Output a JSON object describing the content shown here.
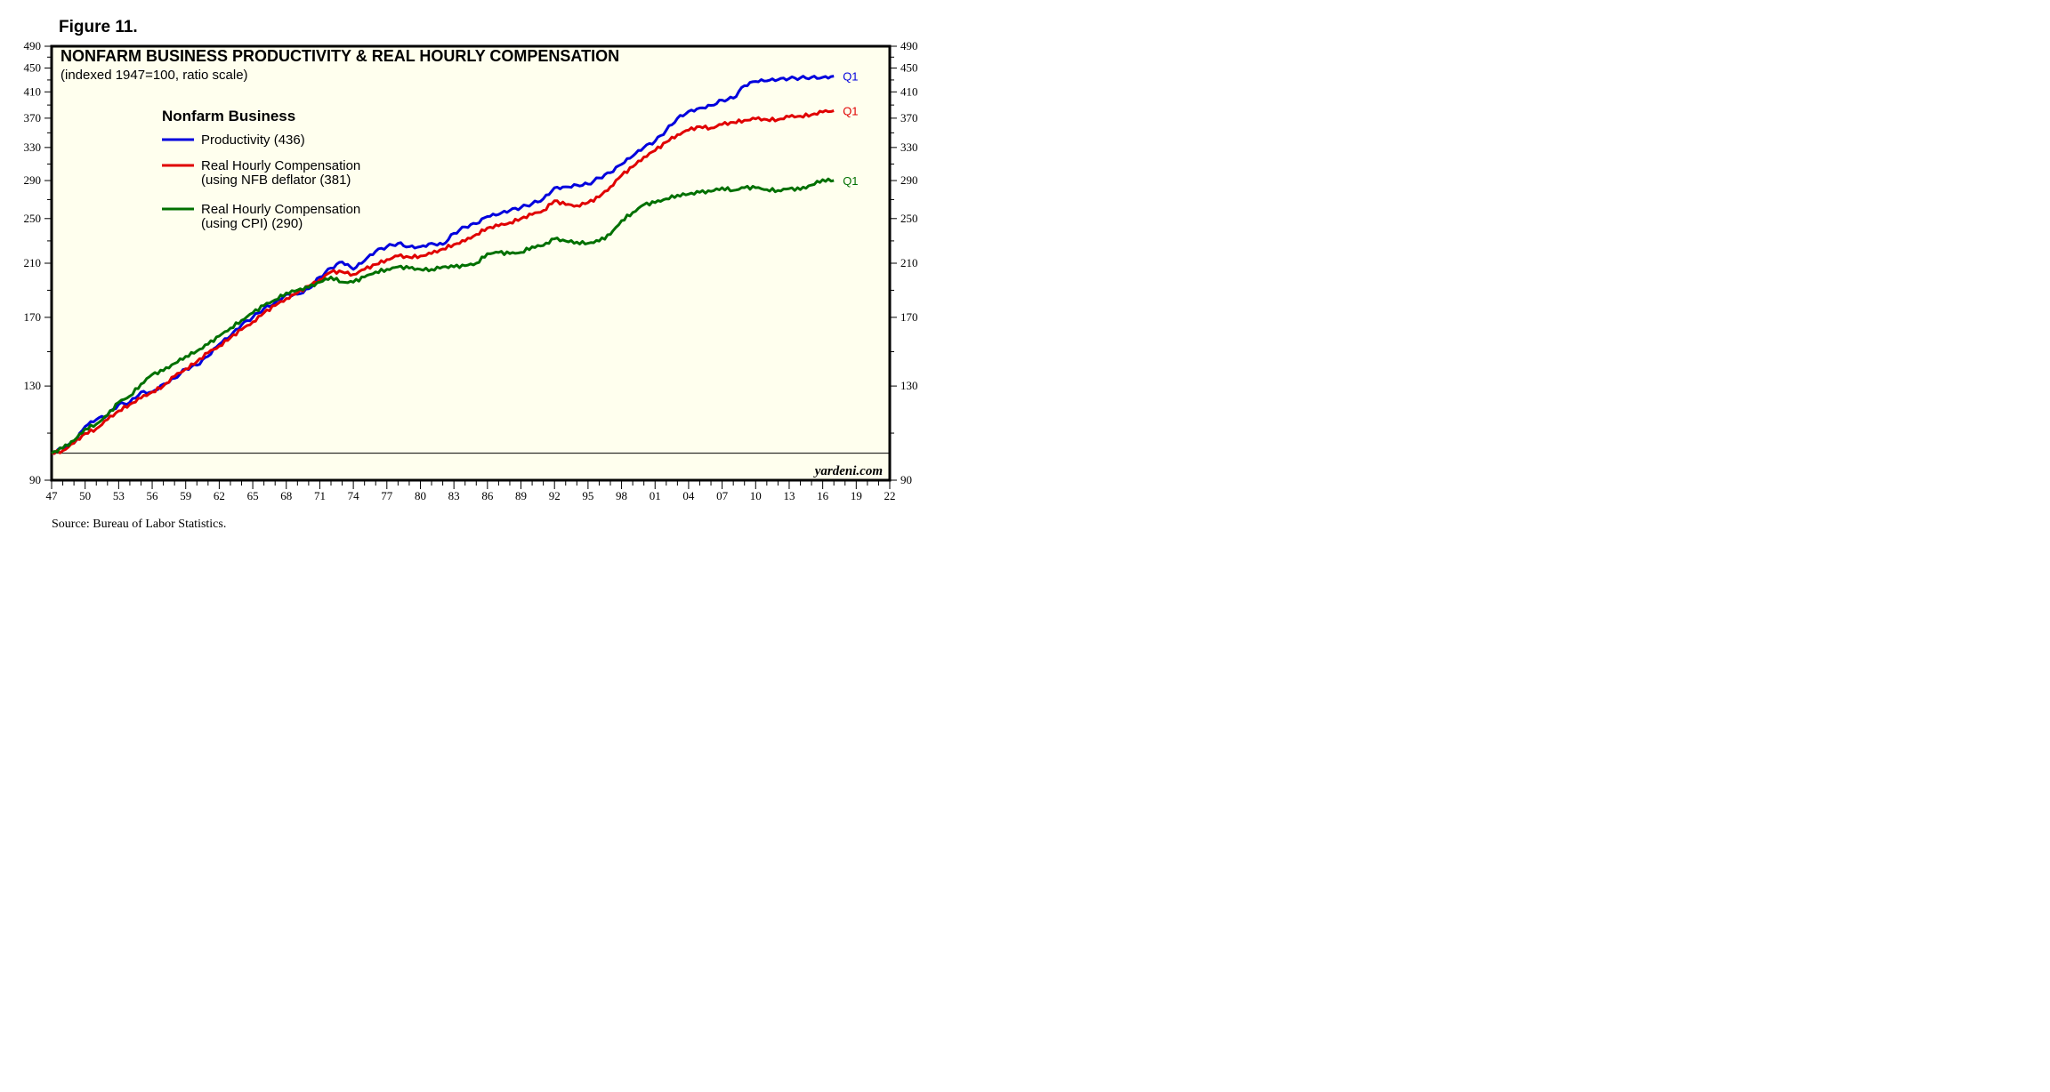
{
  "figure_label": "Figure 11.",
  "source": "Source: Bureau of Labor Statistics.",
  "watermark": "yardeni.com",
  "colors": {
    "background": "#FFFFEE",
    "productivity": "#0000DD",
    "nfb_compensation": "#E00000",
    "cpi_compensation": "#007000"
  },
  "chart_data": {
    "type": "line",
    "title": "NONFARM BUSINESS PRODUCTIVITY & REAL HOURLY COMPENSATION",
    "subtitle": "(indexed 1947=100, ratio scale)",
    "legend_title": "Nonfarm Business",
    "legend_placement": "top-left",
    "y_scale": "log",
    "ylim": [
      90,
      490
    ],
    "xlim": [
      1947,
      2022
    ],
    "y_ticks": [
      90,
      130,
      170,
      210,
      250,
      290,
      330,
      370,
      410,
      450,
      490
    ],
    "x_tick_labels": [
      "47",
      "50",
      "53",
      "56",
      "59",
      "62",
      "65",
      "68",
      "71",
      "74",
      "77",
      "80",
      "83",
      "86",
      "89",
      "92",
      "95",
      "98",
      "01",
      "04",
      "07",
      "10",
      "13",
      "16",
      "19",
      "22"
    ],
    "reference_line": 100,
    "series": [
      {
        "name": "Productivity (436)",
        "color_key": "productivity",
        "end_label": "Q1",
        "x": [
          1947,
          1948,
          1949,
          1950,
          1951,
          1952,
          1953,
          1954,
          1955,
          1956,
          1957,
          1958,
          1959,
          1960,
          1961,
          1962,
          1963,
          1964,
          1965,
          1966,
          1967,
          1968,
          1969,
          1970,
          1971,
          1972,
          1973,
          1974,
          1975,
          1976,
          1977,
          1978,
          1979,
          1980,
          1981,
          1982,
          1983,
          1984,
          1985,
          1986,
          1987,
          1988,
          1989,
          1990,
          1991,
          1992,
          1993,
          1994,
          1995,
          1996,
          1997,
          1998,
          1999,
          2000,
          2001,
          2002,
          2003,
          2004,
          2005,
          2006,
          2007,
          2008,
          2009,
          2010,
          2011,
          2012,
          2013,
          2014,
          2015,
          2016,
          2017
        ],
        "values": [
          100,
          102,
          104,
          111,
          114,
          116,
          121,
          122,
          127,
          127,
          131,
          134,
          139,
          141,
          146,
          153,
          158,
          165,
          170,
          176,
          180,
          186,
          186,
          190,
          199,
          206,
          211,
          205,
          212,
          220,
          224,
          227,
          224,
          224,
          227,
          226,
          236,
          242,
          245,
          252,
          254,
          258,
          261,
          265,
          270,
          282,
          283,
          285,
          286,
          293,
          299,
          309,
          319,
          330,
          338,
          353,
          370,
          380,
          385,
          389,
          397,
          400,
          420,
          427,
          428,
          430,
          432,
          433,
          434,
          434,
          436
        ]
      },
      {
        "name": "Real Hourly Compensation (using NFB deflator (381)",
        "color_key": "nfb_compensation",
        "end_label": "Q1",
        "x": [
          1947,
          1948,
          1949,
          1950,
          1951,
          1952,
          1953,
          1954,
          1955,
          1956,
          1957,
          1958,
          1959,
          1960,
          1961,
          1962,
          1963,
          1964,
          1965,
          1966,
          1967,
          1968,
          1969,
          1970,
          1971,
          1972,
          1973,
          1974,
          1975,
          1976,
          1977,
          1978,
          1979,
          1980,
          1981,
          1982,
          1983,
          1984,
          1985,
          1986,
          1987,
          1988,
          1989,
          1990,
          1991,
          1992,
          1993,
          1994,
          1995,
          1996,
          1997,
          1998,
          1999,
          2000,
          2001,
          2002,
          2003,
          2004,
          2005,
          2006,
          2007,
          2008,
          2009,
          2010,
          2011,
          2012,
          2013,
          2014,
          2015,
          2016,
          2017
        ],
        "values": [
          100,
          101,
          104,
          108,
          110,
          114,
          118,
          121,
          124,
          127,
          130,
          135,
          139,
          143,
          148,
          152,
          157,
          162,
          167,
          173,
          178,
          183,
          187,
          192,
          197,
          203,
          203,
          201,
          205,
          209,
          213,
          216,
          215,
          216,
          218,
          222,
          226,
          229,
          235,
          241,
          243,
          246,
          250,
          254,
          258,
          268,
          264,
          263,
          266,
          272,
          283,
          296,
          306,
          318,
          326,
          337,
          347,
          353,
          358,
          356,
          361,
          364,
          367,
          369,
          368,
          368,
          372,
          373,
          375,
          379,
          381
        ]
      },
      {
        "name": "Real Hourly Compensation (using CPI) (290)",
        "color_key": "cpi_compensation",
        "end_label": "Q1",
        "x": [
          1947,
          1948,
          1949,
          1950,
          1951,
          1952,
          1953,
          1954,
          1955,
          1956,
          1957,
          1958,
          1959,
          1960,
          1961,
          1962,
          1963,
          1964,
          1965,
          1966,
          1967,
          1968,
          1969,
          1970,
          1971,
          1972,
          1973,
          1974,
          1975,
          1976,
          1977,
          1978,
          1979,
          1980,
          1981,
          1982,
          1983,
          1984,
          1985,
          1986,
          1987,
          1988,
          1989,
          1990,
          1991,
          1992,
          1993,
          1994,
          1995,
          1996,
          1997,
          1998,
          1999,
          2000,
          2001,
          2002,
          2003,
          2004,
          2005,
          2006,
          2007,
          2008,
          2009,
          2010,
          2011,
          2012,
          2013,
          2014,
          2015,
          2016,
          2017
        ],
        "values": [
          100,
          102,
          105,
          110,
          112,
          116,
          122,
          125,
          131,
          136,
          138,
          142,
          146,
          149,
          153,
          158,
          163,
          168,
          173,
          178,
          182,
          187,
          189,
          191,
          195,
          199,
          195,
          195,
          199,
          203,
          205,
          207,
          206,
          205,
          205,
          207,
          207,
          208,
          210,
          218,
          219,
          218,
          219,
          224,
          225,
          231,
          229,
          228,
          227,
          229,
          235,
          248,
          256,
          264,
          266,
          270,
          274,
          275,
          277,
          278,
          282,
          279,
          282,
          282,
          280,
          279,
          281,
          280,
          285,
          291,
          290
        ]
      }
    ],
    "legend": [
      {
        "line1": "Productivity (436)",
        "line2": "",
        "color_key": "productivity"
      },
      {
        "line1": "Real Hourly Compensation",
        "line2": "(using NFB deflator (381)",
        "color_key": "nfb_compensation"
      },
      {
        "line1": "Real Hourly Compensation",
        "line2": "(using CPI) (290)",
        "color_key": "cpi_compensation"
      }
    ]
  }
}
